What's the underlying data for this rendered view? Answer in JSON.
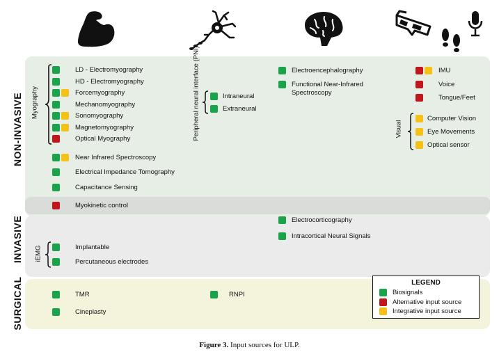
{
  "categories": {
    "non_invasive": "NON-INVASIVE",
    "invasive": "INVASIVE",
    "surgical": "SURGICAL"
  },
  "colors": {
    "biosignal": "#1aa34a",
    "alternative": "#c0161c",
    "integrative": "#f6c117"
  },
  "icons": [
    "arm-muscle-icon",
    "neuron-icon",
    "brain-icon",
    "glasses-3d-icon",
    "footprints-icon",
    "microphone-icon"
  ],
  "groups": {
    "myography": "Myography",
    "pni": "Peripheral neural interface (PNI)",
    "visual": "Visual",
    "iemg": "iEMG"
  },
  "items": {
    "ld_emg": "LD -  Electromyography",
    "hd_emg": "HD - Electromyography",
    "fmg": "Forcemyography",
    "mmg": "Mechanomyography",
    "smg": "Sonomyography",
    "magmg": "Magnetomyography",
    "omg": "Optical Myography",
    "nirs": "Near Infrared Spectroscopy",
    "eit": "Electrical Impedance Tomography",
    "cap": "Capacitance Sensing",
    "myokinetic": "Myokinetic control",
    "intraneural": "Intraneural",
    "extraneural": "Extraneural",
    "eeg": "Electroencephalography",
    "fnirs_1": "Functional Near-Infrared",
    "fnirs_2": "Spectroscopy",
    "imu": "IMU",
    "voice": "Voice",
    "tongue": "Tongue/Feet",
    "cv": "Computer Vision",
    "eye": "Eye Movements",
    "optical": "Optical sensor",
    "ecog": "Electrocorticography",
    "intracortical": "Intracortical Neural Signals",
    "implantable": "Implantable",
    "percutaneous": "Percutaneous electrodes",
    "tmr": "TMR",
    "cineplasty": "Cineplasty",
    "rnpi": "RNPI"
  },
  "legend": {
    "title": "LEGEND",
    "biosignals": "Biosignals",
    "alternative": "Alternative input source",
    "integrative": "Integrative input source"
  },
  "caption": {
    "label": "Figure 3.",
    "text": " Input sources for ULP."
  }
}
